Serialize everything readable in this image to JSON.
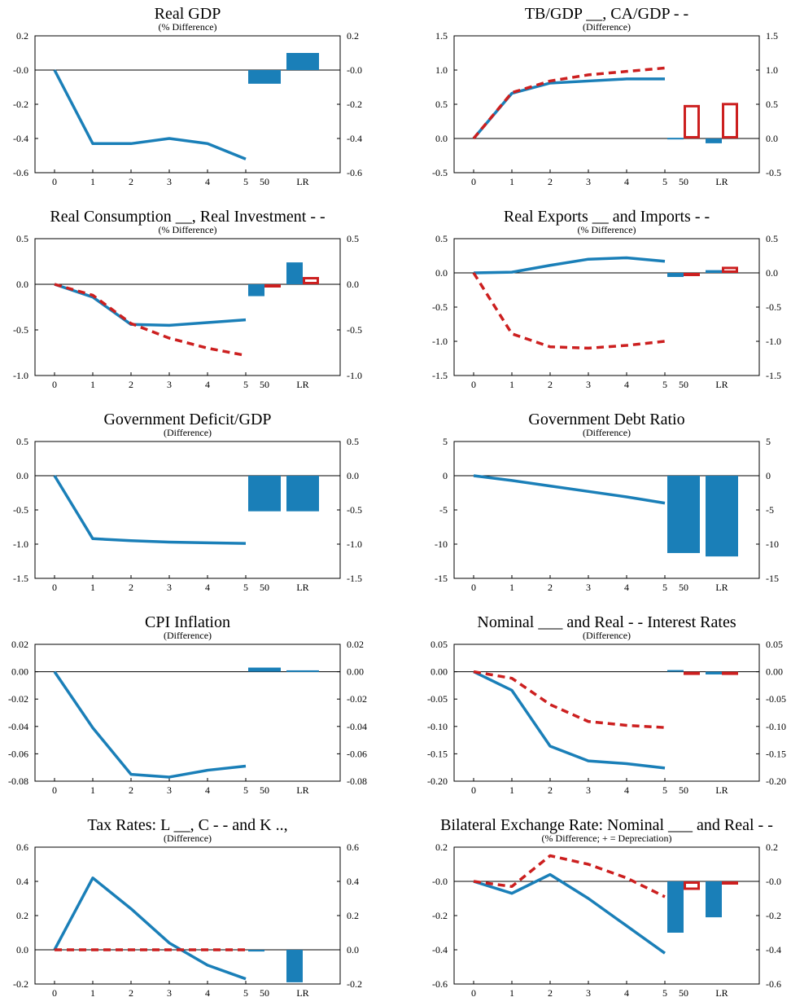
{
  "colors": {
    "series1": "#1a7fb8",
    "series2": "#cc1f1f",
    "zero_line": "#000000",
    "frame": "#000000"
  },
  "chart_data": [
    {
      "type": "line",
      "title": "Real GDP",
      "subtitle": "(% Difference)",
      "x": [
        "0",
        "1",
        "2",
        "3",
        "4",
        "5"
      ],
      "bar_categories": [
        "50",
        "LR"
      ],
      "ylim": [
        -0.6,
        0.2
      ],
      "y_ticks": [
        0.2,
        0.0,
        -0.2,
        -0.4,
        -0.6
      ],
      "y_tick_labels": [
        "0.2",
        "-0.0",
        "-0.2",
        "-0.4",
        "-0.6"
      ],
      "series": [
        {
          "style": "solid",
          "color": "#1a7fb8",
          "values": [
            0,
            -0.43,
            -0.43,
            -0.4,
            -0.43,
            -0.52
          ],
          "bars": [
            -0.08,
            0.1
          ]
        }
      ]
    },
    {
      "type": "line",
      "title": "TB/GDP __, CA/GDP - -",
      "subtitle": "(Difference)",
      "x": [
        "0",
        "1",
        "2",
        "3",
        "4",
        "5"
      ],
      "bar_categories": [
        "50",
        "LR"
      ],
      "ylim": [
        -0.5,
        1.5
      ],
      "y_ticks": [
        1.5,
        1.0,
        0.5,
        0.0,
        -0.5
      ],
      "y_tick_labels": [
        "1.5",
        "1.0",
        "0.5",
        "0.0",
        "-0.5"
      ],
      "series": [
        {
          "style": "solid",
          "color": "#1a7fb8",
          "values": [
            0,
            0.66,
            0.81,
            0.84,
            0.87,
            0.87
          ],
          "bars": [
            0.01,
            -0.07
          ]
        },
        {
          "style": "dashed",
          "color": "#cc1f1f",
          "values": [
            0,
            0.67,
            0.84,
            0.93,
            0.98,
            1.03
          ],
          "bars": [
            0.49,
            0.52
          ]
        }
      ]
    },
    {
      "type": "line",
      "title": "Real Consumption __, Real Investment - -",
      "subtitle": "(% Difference)",
      "x": [
        "0",
        "1",
        "2",
        "3",
        "4",
        "5"
      ],
      "bar_categories": [
        "50",
        "LR"
      ],
      "ylim": [
        -1.0,
        0.5
      ],
      "y_ticks": [
        0.5,
        0.0,
        -0.5,
        -1.0
      ],
      "y_tick_labels": [
        "0.5",
        "0.0",
        "-0.5",
        "-1.0"
      ],
      "series": [
        {
          "style": "solid",
          "color": "#1a7fb8",
          "values": [
            0,
            -0.14,
            -0.44,
            -0.45,
            -0.42,
            -0.39
          ],
          "bars": [
            -0.13,
            0.24
          ]
        },
        {
          "style": "dashed",
          "color": "#cc1f1f",
          "values": [
            0,
            -0.12,
            -0.43,
            -0.59,
            -0.7,
            -0.78
          ],
          "bars": [
            -0.01,
            0.08
          ]
        }
      ]
    },
    {
      "type": "line",
      "title": "Real Exports __ and Imports - -",
      "subtitle": "(% Difference)",
      "x": [
        "0",
        "1",
        "2",
        "3",
        "4",
        "5"
      ],
      "bar_categories": [
        "50",
        "LR"
      ],
      "ylim": [
        -1.5,
        0.5
      ],
      "y_ticks": [
        0.5,
        0.0,
        -0.5,
        -1.0,
        -1.5
      ],
      "y_tick_labels": [
        "0.5",
        "0.0",
        "-0.5",
        "-1.0",
        "-1.5"
      ],
      "series": [
        {
          "style": "solid",
          "color": "#1a7fb8",
          "values": [
            0,
            0.01,
            0.11,
            0.2,
            0.22,
            0.17
          ],
          "bars": [
            -0.06,
            0.04
          ]
        },
        {
          "style": "dashed",
          "color": "#cc1f1f",
          "values": [
            0,
            -0.89,
            -1.08,
            -1.1,
            -1.06,
            -1.0
          ],
          "bars": [
            -0.02,
            0.09
          ]
        }
      ]
    },
    {
      "type": "line",
      "title": "Government Deficit/GDP",
      "subtitle": "(Difference)",
      "x": [
        "0",
        "1",
        "2",
        "3",
        "4",
        "5"
      ],
      "bar_categories": [
        "50",
        "LR"
      ],
      "ylim": [
        -1.5,
        0.5
      ],
      "y_ticks": [
        0.5,
        0.0,
        -0.5,
        -1.0,
        -1.5
      ],
      "y_tick_labels": [
        "0.5",
        "0.0",
        "-0.5",
        "-1.0",
        "-1.5"
      ],
      "series": [
        {
          "style": "solid",
          "color": "#1a7fb8",
          "values": [
            0,
            -0.92,
            -0.95,
            -0.97,
            -0.98,
            -0.99
          ],
          "bars": [
            -0.52,
            -0.52
          ]
        }
      ]
    },
    {
      "type": "line",
      "title": "Government Debt Ratio",
      "subtitle": "(Difference)",
      "x": [
        "0",
        "1",
        "2",
        "3",
        "4",
        "5"
      ],
      "bar_categories": [
        "50",
        "LR"
      ],
      "ylim": [
        -15,
        5
      ],
      "y_ticks": [
        5,
        0,
        -5,
        -10,
        -15
      ],
      "y_tick_labels": [
        "5",
        "0",
        "-5",
        "-10",
        "-15"
      ],
      "series": [
        {
          "style": "solid",
          "color": "#1a7fb8",
          "values": [
            0,
            -0.7,
            -1.5,
            -2.3,
            -3.1,
            -4.0
          ],
          "bars": [
            -11.3,
            -11.8
          ]
        }
      ]
    },
    {
      "type": "line",
      "title": "CPI Inflation",
      "subtitle": "(Difference)",
      "x": [
        "0",
        "1",
        "2",
        "3",
        "4",
        "5"
      ],
      "bar_categories": [
        "50",
        "LR"
      ],
      "ylim": [
        -0.08,
        0.02
      ],
      "y_ticks": [
        0.02,
        0.0,
        -0.02,
        -0.04,
        -0.06,
        -0.08
      ],
      "y_tick_labels": [
        "0.02",
        "0.00",
        "-0.02",
        "-0.04",
        "-0.06",
        "-0.08"
      ],
      "series": [
        {
          "style": "solid",
          "color": "#1a7fb8",
          "values": [
            0,
            -0.041,
            -0.075,
            -0.077,
            -0.072,
            -0.069
          ],
          "bars": [
            0.003,
            0.001
          ]
        }
      ]
    },
    {
      "type": "line",
      "title": "Nominal ___ and Real - - Interest Rates",
      "subtitle": "(Difference)",
      "x": [
        "0",
        "1",
        "2",
        "3",
        "4",
        "5"
      ],
      "bar_categories": [
        "50",
        "LR"
      ],
      "ylim": [
        -0.2,
        0.05
      ],
      "y_ticks": [
        0.05,
        0.0,
        -0.05,
        -0.1,
        -0.15,
        -0.2
      ],
      "y_tick_labels": [
        "0.05",
        "0.00",
        "-0.05",
        "-0.10",
        "-0.15",
        "-0.20"
      ],
      "series": [
        {
          "style": "solid",
          "color": "#1a7fb8",
          "values": [
            0,
            -0.034,
            -0.136,
            -0.163,
            -0.168,
            -0.176
          ],
          "bars": [
            0.003,
            -0.005
          ]
        },
        {
          "style": "dashed",
          "color": "#cc1f1f",
          "values": [
            0,
            -0.012,
            -0.06,
            -0.091,
            -0.098,
            -0.102
          ],
          "bars": [
            -0.001,
            -0.003
          ]
        }
      ]
    },
    {
      "type": "line",
      "title": "Tax Rates: L __, C - - and K ..,",
      "subtitle": "(Difference)",
      "x": [
        "0",
        "1",
        "2",
        "3",
        "4",
        "5"
      ],
      "bar_categories": [
        "50",
        "LR"
      ],
      "ylim": [
        -0.2,
        0.6
      ],
      "y_ticks": [
        0.6,
        0.4,
        0.2,
        0.0,
        -0.2
      ],
      "y_tick_labels": [
        "0.6",
        "0.4",
        "0.2",
        "0.0",
        "-0.2"
      ],
      "series": [
        {
          "style": "solid",
          "color": "#1a7fb8",
          "values": [
            0,
            0.42,
            0.24,
            0.04,
            -0.09,
            -0.17
          ],
          "bars": [
            -0.01,
            -0.19
          ]
        },
        {
          "style": "dashed",
          "color": "#cc1f1f",
          "values": [
            0,
            0,
            0,
            0,
            0,
            0
          ],
          "bars": null
        }
      ]
    },
    {
      "type": "line",
      "title": "Bilateral Exchange Rate: Nominal ___ and Real - -",
      "subtitle": "(% Difference; + = Depreciation)",
      "x": [
        "0",
        "1",
        "2",
        "3",
        "4",
        "5"
      ],
      "bar_categories": [
        "50",
        "LR"
      ],
      "ylim": [
        -0.6,
        0.2
      ],
      "y_ticks": [
        0.2,
        0.0,
        -0.2,
        -0.4,
        -0.6
      ],
      "y_tick_labels": [
        "0.2",
        "-0.0",
        "-0.2",
        "-0.4",
        "-0.6"
      ],
      "series": [
        {
          "style": "solid",
          "color": "#1a7fb8",
          "values": [
            0,
            -0.07,
            0.04,
            -0.1,
            -0.26,
            -0.42
          ],
          "bars": [
            -0.3,
            -0.21
          ]
        },
        {
          "style": "dashed",
          "color": "#cc1f1f",
          "values": [
            0,
            -0.03,
            0.15,
            0.1,
            0.02,
            -0.09
          ],
          "bars": [
            -0.05,
            -0.01
          ]
        }
      ]
    }
  ]
}
